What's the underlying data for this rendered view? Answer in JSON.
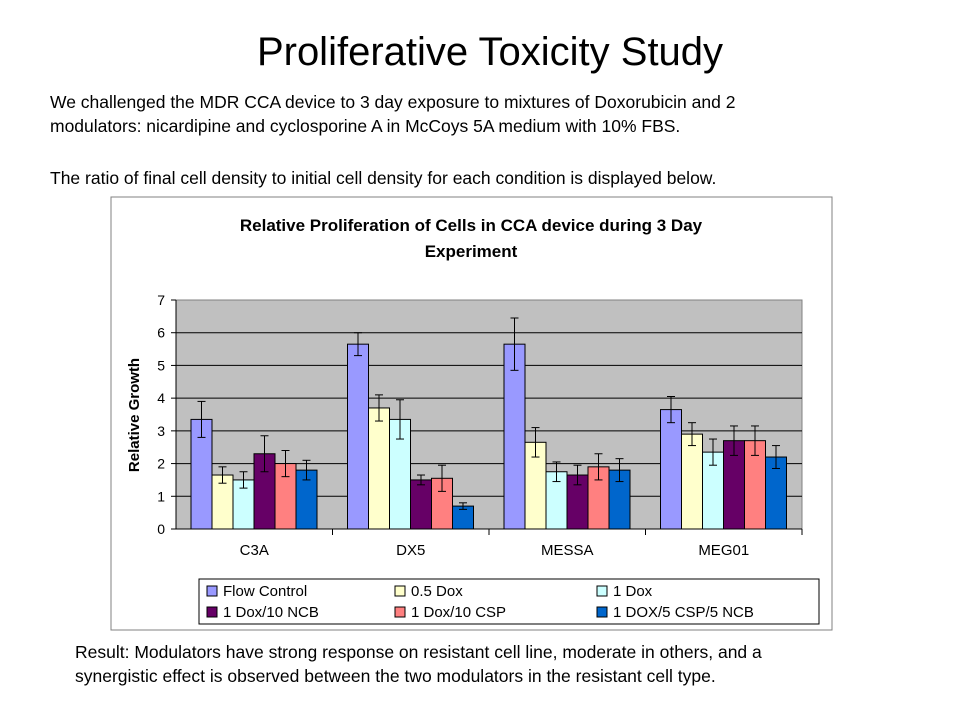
{
  "slide": {
    "title": "Proliferative Toxicity Study",
    "intro_line1": "We challenged the MDR CCA device to 3 day exposure to mixtures of Doxorubicin and 2",
    "intro_line2": "modulators: nicardipine and cyclosporine A in McCoys 5A medium with 10% FBS.",
    "intro_line3": "The ratio of final cell density to initial cell density for each condition is displayed below.",
    "result_line1": "Result:  Modulators have strong response on resistant cell line, moderate in others, and a",
    "result_line2": "synergistic effect is observed between the two modulators in the resistant cell type."
  },
  "chart_data": {
    "type": "bar",
    "title_line1": "Relative Proliferation of Cells in CCA device during 3 Day",
    "title_line2": "Experiment",
    "xlabel": "",
    "ylabel": "Relative Growth",
    "ylim": [
      0,
      7
    ],
    "yticks": [
      "0",
      "1",
      "2",
      "3",
      "4",
      "5",
      "6",
      "7"
    ],
    "grid": true,
    "legend_position": "bottom",
    "categories": [
      "C3A",
      "DX5",
      "MESSA",
      "MEG01"
    ],
    "series": [
      {
        "name": "Flow Control",
        "color": "#9999ff",
        "values": [
          3.35,
          5.65,
          5.65,
          3.65
        ],
        "errors": [
          0.55,
          0.35,
          0.8,
          0.4
        ]
      },
      {
        "name": "0.5 Dox",
        "color": "#ffffcc",
        "values": [
          1.65,
          3.7,
          2.65,
          2.9
        ],
        "errors": [
          0.25,
          0.4,
          0.45,
          0.35
        ]
      },
      {
        "name": "1 Dox",
        "color": "#ccffff",
        "values": [
          1.5,
          3.35,
          1.75,
          2.35
        ],
        "errors": [
          0.25,
          0.6,
          0.3,
          0.4
        ]
      },
      {
        "name": "1 Dox/10 NCB",
        "color": "#660066",
        "values": [
          2.3,
          1.5,
          1.65,
          2.7
        ],
        "errors": [
          0.55,
          0.15,
          0.3,
          0.45
        ]
      },
      {
        "name": "1 Dox/10 CSP",
        "color": "#ff8080",
        "values": [
          2.0,
          1.55,
          1.9,
          2.7
        ],
        "errors": [
          0.4,
          0.4,
          0.4,
          0.45
        ]
      },
      {
        "name": "1 DOX/5 CSP/5 NCB",
        "color": "#0066cc",
        "values": [
          1.8,
          0.7,
          1.8,
          2.2
        ],
        "errors": [
          0.3,
          0.1,
          0.35,
          0.35
        ]
      }
    ],
    "colors": {
      "plot_background": "#c0c0c0",
      "frame": "#808080"
    }
  }
}
